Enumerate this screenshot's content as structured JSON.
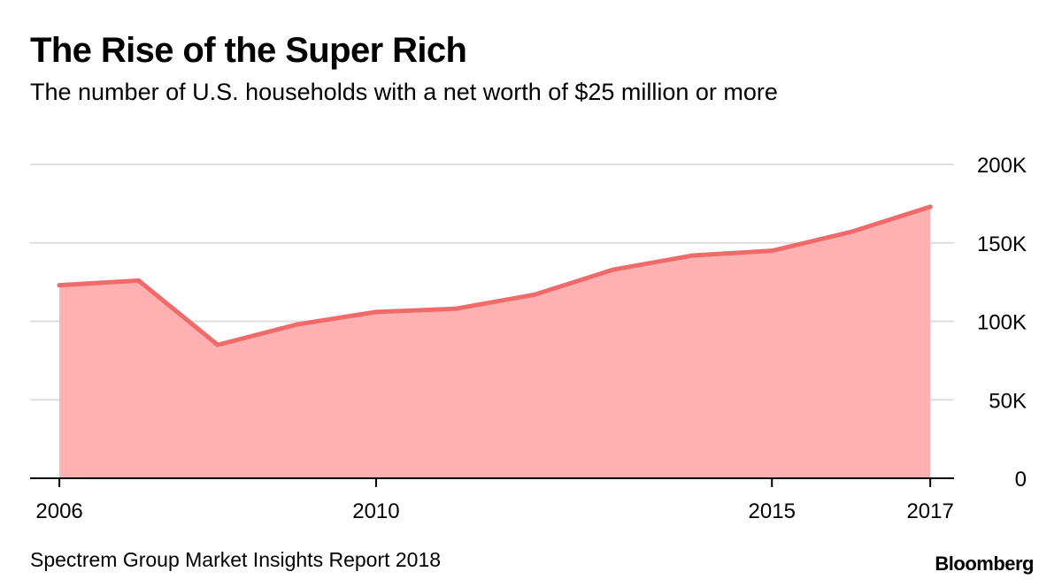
{
  "header": {
    "title": "The Rise of the Super Rich",
    "subtitle": "The number of U.S. households with a net worth of $25 million or more"
  },
  "footer": {
    "source": "Spectrem Group Market Insights Report 2018",
    "brand": "Bloomberg"
  },
  "colors": {
    "line": "#f06a6a",
    "area": "#ffb0b0",
    "grid": "#dddddd",
    "axis": "#000000"
  },
  "chart_data": {
    "type": "area",
    "title": "The Rise of the Super Rich",
    "subtitle": "The number of U.S. households with a net worth of $25 million or more",
    "xlabel": "",
    "ylabel": "",
    "x": [
      2006,
      2007,
      2008,
      2009,
      2010,
      2011,
      2012,
      2013,
      2014,
      2015,
      2016,
      2017
    ],
    "values": [
      123000,
      126000,
      85000,
      98000,
      106000,
      108000,
      117000,
      133000,
      142000,
      145000,
      157000,
      173000
    ],
    "xlim": [
      2005.63,
      2017.3
    ],
    "ylim": [
      0,
      200000
    ],
    "yticks": [
      0,
      50000,
      100000,
      150000,
      200000
    ],
    "ytick_labels": [
      "0",
      "50K",
      "100K",
      "150K",
      "200K"
    ],
    "xticks": [
      2006,
      2010,
      2015,
      2017
    ],
    "xtick_labels": [
      "2006",
      "2010",
      "2015",
      "2017"
    ],
    "grid": true,
    "y_axis_side": "right"
  }
}
